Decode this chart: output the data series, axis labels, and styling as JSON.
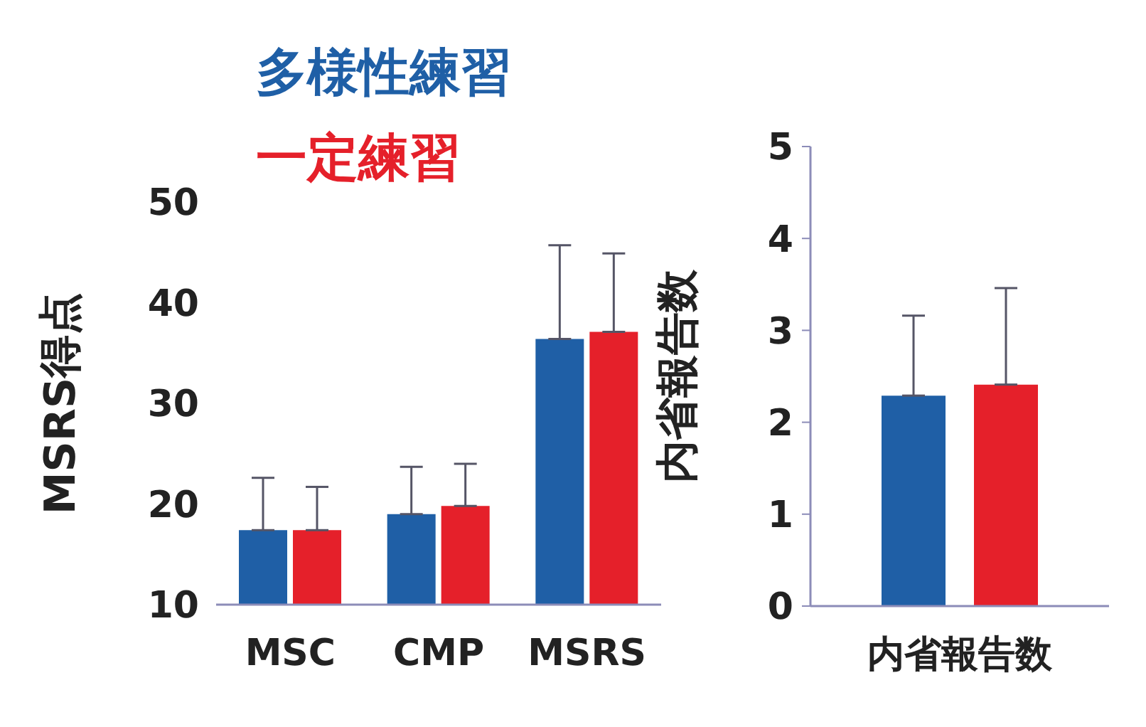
{
  "chart_data": [
    {
      "type": "bar",
      "ylabel": "MSRS得点",
      "categories": [
        "MSC",
        "CMP",
        "MSRS"
      ],
      "ylim": [
        10,
        50
      ],
      "yticks": [
        10,
        20,
        30,
        40,
        50
      ],
      "legend": "top left",
      "series": [
        {
          "name": "多様性練習",
          "color": "#1f5fa6",
          "values": [
            17.4,
            19.0,
            36.4
          ],
          "errors": [
            [
              17.4,
              22.6
            ],
            [
              19.0,
              23.7
            ],
            [
              36.4,
              45.7
            ]
          ]
        },
        {
          "name": "一定練習",
          "color": "#e5202a",
          "values": [
            17.4,
            19.8,
            37.1
          ],
          "errors": [
            [
              17.4,
              21.7
            ],
            [
              19.8,
              24.0
            ],
            [
              37.1,
              44.9
            ]
          ]
        }
      ]
    },
    {
      "type": "bar",
      "ylabel": "内省報告数",
      "categories": [
        "内省報告数"
      ],
      "ylim": [
        0,
        5
      ],
      "yticks": [
        0,
        1,
        2,
        3,
        4,
        5
      ],
      "series": [
        {
          "color": "#1f5fa6",
          "values": [
            2.29
          ],
          "errors": [
            [
              2.29,
              3.16
            ]
          ]
        },
        {
          "color": "#e5202a",
          "values": [
            2.41
          ],
          "errors": [
            [
              2.41,
              3.46
            ]
          ]
        }
      ]
    }
  ]
}
